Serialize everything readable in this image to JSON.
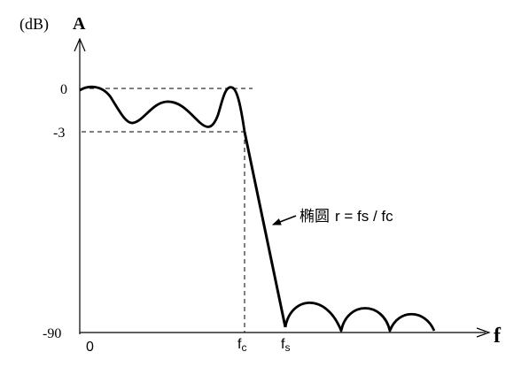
{
  "diagram": {
    "unit_label": "(dB)",
    "y_axis_label": "A",
    "x_axis_label": "f",
    "y_ticks": {
      "zero": "0",
      "minus3": "-3",
      "minus90": "-90"
    },
    "x_ticks": {
      "origin": "0",
      "fc": {
        "base": "f",
        "sub": "c"
      },
      "fs": {
        "base": "f",
        "sub": "s"
      }
    },
    "annotation": {
      "cn": "椭圆",
      "formula": "r = fs / fc"
    },
    "colors": {
      "ink": "#000000",
      "background": "#ffffff"
    }
  }
}
